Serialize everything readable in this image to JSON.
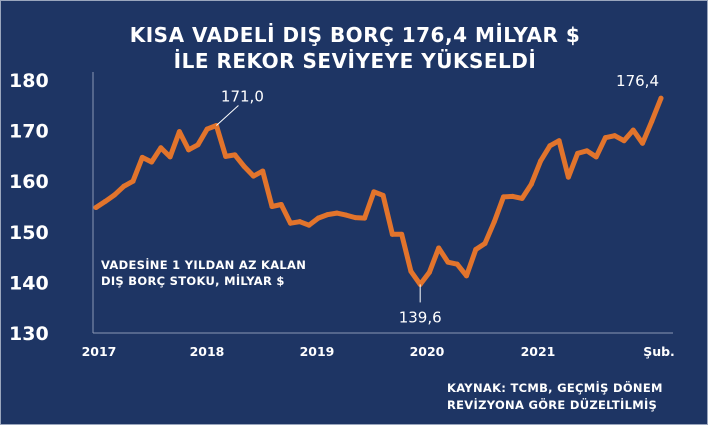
{
  "header": {
    "title_line1": "KISA VADELİ DIŞ BORÇ 176,4 MİLYAR $",
    "title_line2": "İLE REKOR SEVİYEYE YÜKSELDİ"
  },
  "subtitle": {
    "line1": "VADESİNE 1 YILDAN AZ KALAN",
    "line2": "DIŞ BORÇ STOKU, MİLYAR $"
  },
  "source": {
    "line1": "KAYNAK: TCMB, GEÇMİŞ DÖNEM",
    "line2": "REVİZYONA GÖRE DÜZELTİLMİŞ"
  },
  "colors": {
    "background": "#1e3564",
    "line": "#e2742c",
    "text": "#ffffff"
  },
  "chart_data": {
    "type": "line",
    "grid": false,
    "ylim": [
      130,
      180
    ],
    "yticks": [
      "130",
      "140",
      "150",
      "160",
      "170",
      "180"
    ],
    "xticks": [
      "2017",
      "2018",
      "2019",
      "2020",
      "2021",
      "Şub."
    ],
    "x": [
      "2017-01",
      "2017-02",
      "2017-03",
      "2017-04",
      "2017-05",
      "2017-06",
      "2017-07",
      "2017-08",
      "2017-09",
      "2017-10",
      "2017-11",
      "2017-12",
      "2018-01",
      "2018-02",
      "2018-03",
      "2018-04",
      "2018-05",
      "2018-06",
      "2018-07",
      "2018-08",
      "2018-09",
      "2018-10",
      "2018-11",
      "2018-12",
      "2019-01",
      "2019-02",
      "2019-03",
      "2019-04",
      "2019-05",
      "2019-06",
      "2019-07",
      "2019-08",
      "2019-09",
      "2019-10",
      "2019-11",
      "2019-12",
      "2020-01",
      "2020-02",
      "2020-03",
      "2020-04",
      "2020-05",
      "2020-06",
      "2020-07",
      "2020-08",
      "2020-09",
      "2020-10",
      "2020-11",
      "2020-12",
      "2021-01",
      "2021-02",
      "2021-03",
      "2021-04",
      "2021-05",
      "2021-06",
      "2021-07",
      "2021-08",
      "2021-09",
      "2021-10",
      "2021-11",
      "2021-12",
      "2022-01",
      "2022-02"
    ],
    "series": [
      {
        "values": [
          154.8,
          156.0,
          157.3,
          159.0,
          160.0,
          164.7,
          163.8,
          166.6,
          164.8,
          169.8,
          166.2,
          167.2,
          170.3,
          171.0,
          164.9,
          165.2,
          162.9,
          161.0,
          162.0,
          155.0,
          155.4,
          151.7,
          152.0,
          151.3,
          152.7,
          153.4,
          153.7,
          153.3,
          152.8,
          152.7,
          157.9,
          157.2,
          149.5,
          149.5,
          142.2,
          139.6,
          142.0,
          146.8,
          144.0,
          143.6,
          141.3,
          146.5,
          147.7,
          152.0,
          156.9,
          157.0,
          156.6,
          159.4,
          164.0,
          167.0,
          168.0,
          160.8,
          165.5,
          166.0,
          164.8,
          168.6,
          169.0,
          168.0,
          170.1,
          167.5,
          171.8,
          176.4
        ]
      }
    ],
    "annotations": [
      {
        "x": "2018-02",
        "value": 171.0,
        "label": "171,0"
      },
      {
        "x": "2019-12",
        "value": 139.6,
        "label": "139,6"
      },
      {
        "x": "2022-02",
        "value": 176.4,
        "label": "176,4"
      }
    ]
  }
}
